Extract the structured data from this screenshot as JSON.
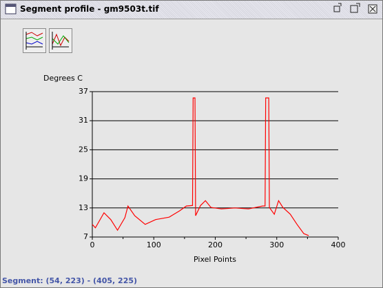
{
  "window": {
    "title": "Segment profile - gm9503t.tif"
  },
  "status": "Segment: (54, 223) - (405, 225)",
  "chart_data": {
    "type": "line",
    "ylabel": "Degrees C",
    "xlabel": "Pixel Points",
    "xlim": [
      0,
      400
    ],
    "xticks": [
      0,
      100,
      200,
      300,
      400
    ],
    "ylim": [
      7,
      37
    ],
    "yticks": [
      7,
      13,
      19,
      25,
      31,
      37
    ],
    "grid": true,
    "series": [
      {
        "color": "#ff0000",
        "x": [
          0,
          5,
          19,
          30,
          41,
          53,
          58,
          69,
          86,
          103,
          125,
          142,
          153,
          163,
          164,
          167,
          168,
          176,
          184,
          193,
          210,
          232,
          254,
          277,
          281,
          282,
          287,
          288,
          296,
          303,
          310,
          322,
          333,
          344,
          352
        ],
        "values": [
          9.6,
          8.9,
          12,
          10.6,
          8.4,
          11,
          13.4,
          11.4,
          9.6,
          10.6,
          11.1,
          12.4,
          13.4,
          13.5,
          35.7,
          35.7,
          11.4,
          13.5,
          14.5,
          13.1,
          12.8,
          13,
          12.8,
          13.4,
          13.4,
          35.7,
          35.7,
          13.1,
          11.7,
          14.5,
          13.1,
          11.7,
          9.6,
          7.7,
          7.3
        ]
      }
    ]
  }
}
